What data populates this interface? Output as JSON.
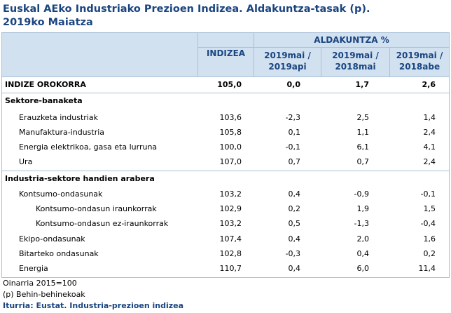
{
  "title_line1": "Euskal AEko Industriako Prezioen Indizea. Aldakuntza-tasak (p).",
  "title_line2": "2019ko Maiatza",
  "header": {
    "indizea": "INDIZEA",
    "aldakuntza": "ALDAKUNTZA %",
    "col1_a": "2019mai /",
    "col1_b": "2019api",
    "col2_a": "2019mai /",
    "col2_b": "2018mai",
    "col3_a": "2019mai /",
    "col3_b": "2018abe"
  },
  "rows": [
    {
      "label": "INDIZE OROKORRA",
      "v": [
        "105,0",
        "0,0",
        "1,7",
        "2,6"
      ]
    },
    {
      "label": "Sektore-banaketa"
    },
    {
      "label": "Erauzketa industriak",
      "v": [
        "103,6",
        "-2,3",
        "2,5",
        "1,4"
      ]
    },
    {
      "label": "Manufaktura-industria",
      "v": [
        "105,8",
        "0,1",
        "1,1",
        "2,4"
      ]
    },
    {
      "label": "Energia elektrikoa, gasa eta lurruna",
      "v": [
        "100,0",
        "-0,1",
        "6,1",
        "4,1"
      ]
    },
    {
      "label": "Ura",
      "v": [
        "107,0",
        "0,7",
        "0,7",
        "2,4"
      ]
    },
    {
      "label": "Industria-sektore handien arabera"
    },
    {
      "label": "Kontsumo-ondasunak",
      "v": [
        "103,2",
        "0,4",
        "-0,9",
        "-0,1"
      ]
    },
    {
      "label": "Kontsumo-ondasun iraunkorrak",
      "v": [
        "102,9",
        "0,2",
        "1,9",
        "1,5"
      ]
    },
    {
      "label": "Kontsumo-ondasun ez-iraunkorrak",
      "v": [
        "103,2",
        "0,5",
        "-1,3",
        "-0,4"
      ]
    },
    {
      "label": "Ekipo-ondasunak",
      "v": [
        "107,4",
        "0,4",
        "2,0",
        "1,6"
      ]
    },
    {
      "label": "Bitarteko ondasunak",
      "v": [
        "102,8",
        "-0,3",
        "0,4",
        "0,2"
      ]
    },
    {
      "label": "Energia",
      "v": [
        "110,7",
        "0,4",
        "6,0",
        "11,4"
      ]
    }
  ],
  "footnotes": {
    "base": "Oinarria 2015=100",
    "provisional": "(p) Behin-behinekoak",
    "source": "Iturria: Eustat. Industria-prezioen indizea"
  }
}
